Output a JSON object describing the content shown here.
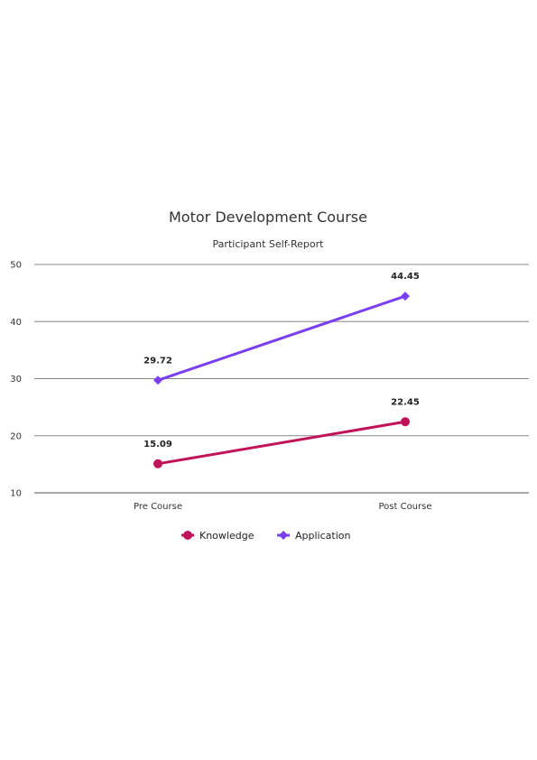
{
  "chart_data": {
    "type": "line",
    "title": "Motor Development Course",
    "subtitle": "Participant Self-Report",
    "categories": [
      "Pre Course",
      "Post Course"
    ],
    "ylim": [
      10,
      50
    ],
    "yticks": [
      10,
      20,
      30,
      40,
      50
    ],
    "grid": true,
    "legend_position": "bottom",
    "series": [
      {
        "name": "Knowledge",
        "values": [
          15.09,
          22.45
        ],
        "labels": [
          "15.09",
          "22.45"
        ],
        "color": "#c0135a",
        "marker": "circle"
      },
      {
        "name": "Application",
        "values": [
          29.72,
          44.45
        ],
        "labels": [
          "29.72",
          "44.45"
        ],
        "color": "#7b3ff2",
        "marker": "diamond"
      }
    ]
  }
}
